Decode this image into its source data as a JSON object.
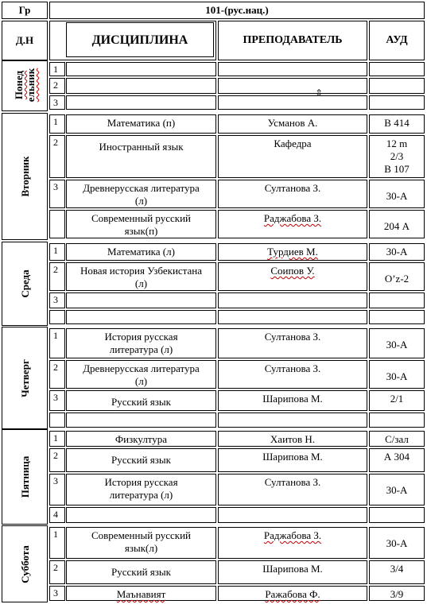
{
  "header": {
    "group_label": "Гр",
    "group_name": "101-(рус.нац.)",
    "day_col": "Д.Н",
    "discipline_col": "ДИСЦИПЛИНА",
    "teacher_col": "ПРЕПОДАВАТЕЛЬ",
    "room_col": "АУД"
  },
  "days": [
    {
      "name": "Понед ельник",
      "rows": [
        {
          "num": "1",
          "discipline": "",
          "teacher": "",
          "room": ""
        },
        {
          "num": "2",
          "discipline": "",
          "teacher": "",
          "room": ""
        },
        {
          "num": "3",
          "discipline": "",
          "teacher": "",
          "room": ""
        }
      ]
    },
    {
      "name": "Вторник",
      "rows": [
        {
          "num": "1",
          "discipline": "Математика (п)",
          "teacher": "Усманов А.",
          "room": "В 414"
        },
        {
          "num": "2",
          "discipline": "Иностранный язык",
          "teacher": "Кафедра",
          "room_lines": [
            "12 m",
            "2/3",
            "В 107"
          ]
        },
        {
          "num": "3",
          "discipline_lines": [
            "Древнерусская литература",
            "(л)"
          ],
          "teacher": "Султанова З.",
          "room": "30-А"
        },
        {
          "num": "",
          "discipline_lines": [
            "Современный русский",
            "язык(п)"
          ],
          "teacher": "Раджабова З.",
          "room": "204 А"
        }
      ]
    },
    {
      "name": "Среда",
      "rows": [
        {
          "num": "1",
          "discipline": "Математика (л)",
          "teacher": "Турдиев М.",
          "room": "30-А"
        },
        {
          "num": "2",
          "discipline_lines": [
            "Новая история Узбекистана",
            "(л)"
          ],
          "teacher": "Соипов У.",
          "room": "O’z-2"
        },
        {
          "num": "3",
          "discipline": "",
          "teacher": "",
          "room": ""
        },
        {
          "num": "",
          "discipline": "",
          "teacher": "",
          "room": ""
        }
      ]
    },
    {
      "name": "Четверг",
      "rows": [
        {
          "num": "1",
          "discipline_lines": [
            "История  русская",
            "литература (л)"
          ],
          "teacher": "Султанова З.",
          "room": "30-А"
        },
        {
          "num": "2",
          "discipline_lines": [
            "Древнерусская литература",
            "(л)"
          ],
          "teacher": "Султанова З.",
          "room": "30-А"
        },
        {
          "num": "3",
          "discipline": "Русский язык",
          "teacher": "Шарипова М.",
          "room": "2/1"
        },
        {
          "num": "",
          "discipline": "",
          "teacher": "",
          "room": ""
        }
      ]
    },
    {
      "name": "Пятница",
      "rows": [
        {
          "num": "1",
          "discipline": "Физкултура",
          "teacher": "Хаитов Н.",
          "room": "С/зал"
        },
        {
          "num": "2",
          "discipline": "Русский язык",
          "teacher": "Шарипова М.",
          "room": "А 304"
        },
        {
          "num": "3",
          "discipline_lines": [
            "История  русская",
            "литература (л)"
          ],
          "teacher": "Султанова З.",
          "room": "30-А"
        },
        {
          "num": "4",
          "discipline": "",
          "teacher": "",
          "room": ""
        }
      ]
    },
    {
      "name": "Суббота",
      "rows": [
        {
          "num": "1",
          "discipline_lines": [
            "Современный русский",
            "язык(л)"
          ],
          "teacher": "Раджабова З.",
          "room": "30-А"
        },
        {
          "num": "2",
          "discipline": "Русский язык",
          "teacher": "Шарипова М.",
          "room": "3/4"
        },
        {
          "num": "3",
          "discipline": "Маънавият",
          "teacher": "Ражабова Ф.",
          "room": "3/9"
        }
      ]
    }
  ]
}
